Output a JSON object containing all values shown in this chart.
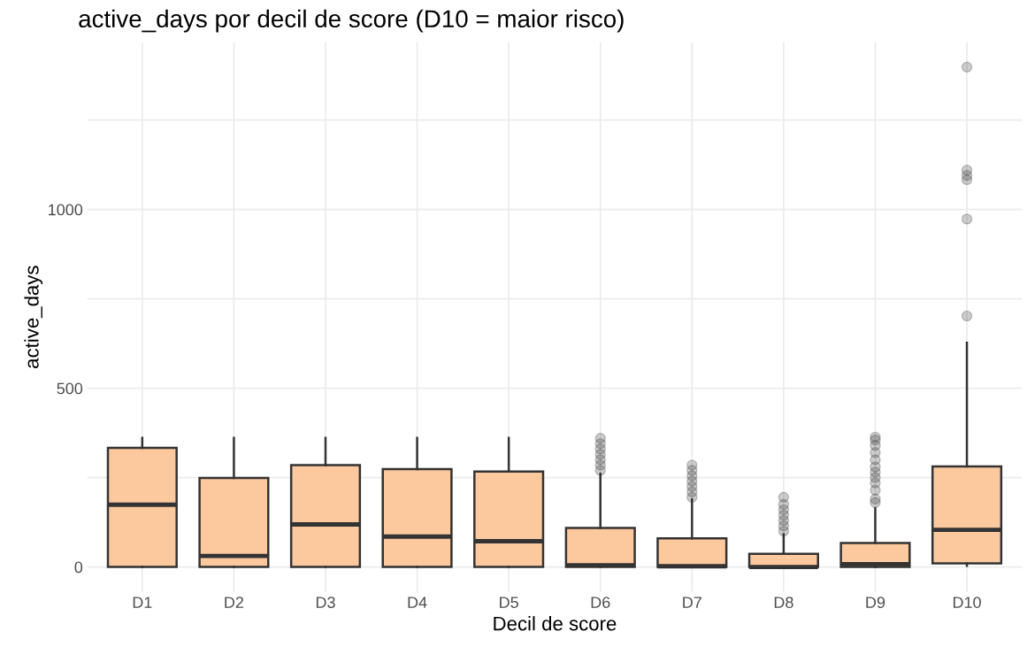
{
  "chart_data": {
    "type": "box",
    "title": "active_days por decil de score (D10 = maior risco)",
    "xlabel": "Decil de score",
    "ylabel": "active_days",
    "categories": [
      "D1",
      "D2",
      "D3",
      "D4",
      "D5",
      "D6",
      "D7",
      "D8",
      "D9",
      "D10"
    ],
    "color": "#fcc89e",
    "boxes": [
      {
        "low": 0,
        "q1": 0,
        "median": 174,
        "q3": 333,
        "high": 361
      },
      {
        "low": 0,
        "q1": 0,
        "median": 31,
        "q3": 249,
        "high": 361
      },
      {
        "low": 0,
        "q1": 0,
        "median": 119,
        "q3": 285,
        "high": 361
      },
      {
        "low": 0,
        "q1": 0,
        "median": 85,
        "q3": 274,
        "high": 361
      },
      {
        "low": 0,
        "q1": 0,
        "median": 72,
        "q3": 267,
        "high": 361
      },
      {
        "low": 0,
        "q1": 0,
        "median": 5,
        "q3": 109,
        "high": 261,
        "outliers": [
          270,
          285,
          300,
          315,
          330,
          345,
          360
        ]
      },
      {
        "low": 0,
        "q1": 0,
        "median": 2,
        "q3": 80,
        "high": 189,
        "outliers": [
          195,
          210,
          225,
          240,
          255,
          270,
          285
        ]
      },
      {
        "low": 0,
        "q1": 0,
        "median": 0,
        "q3": 37,
        "high": 92,
        "outliers": [
          100,
          115,
          130,
          145,
          160,
          175,
          195
        ]
      },
      {
        "low": 0,
        "q1": 0,
        "median": 8,
        "q3": 67,
        "high": 164,
        "outliers": [
          180,
          190,
          215,
          235,
          250,
          265,
          280,
          300,
          320,
          340,
          355,
          363
        ]
      },
      {
        "low": 3,
        "q1": 10,
        "median": 104,
        "q3": 281,
        "high": 627,
        "outliers": [
          702,
          973,
          1083,
          1095,
          1110,
          1398
        ]
      }
    ],
    "ylim": [
      -70,
      1468
    ],
    "yticks": [
      0,
      {
        "value": 250,
        "label": null
      },
      500,
      {
        "value": 750,
        "label": null
      },
      1000,
      {
        "value": 1250,
        "label": null
      }
    ],
    "grid": true
  }
}
